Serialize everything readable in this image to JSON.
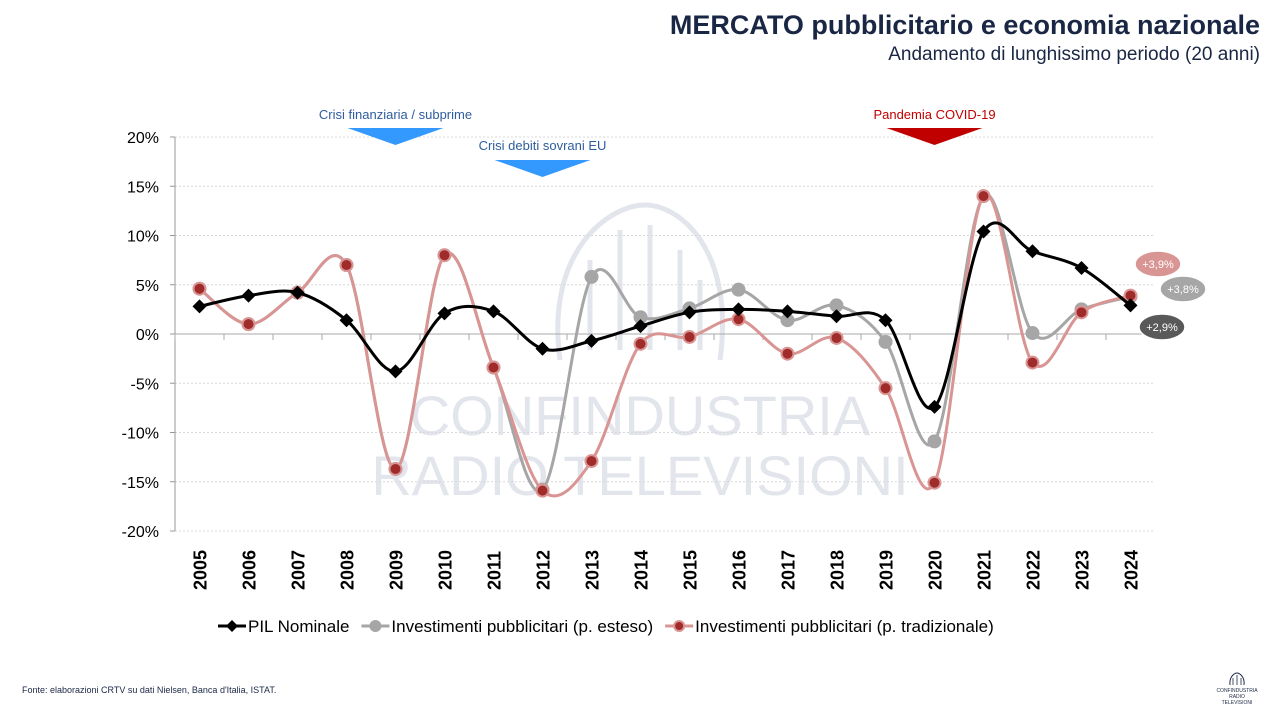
{
  "header": {
    "title": "MERCATO pubblicitario e economia nazionale",
    "subtitle": "Andamento di lunghissimo periodo (20 anni)"
  },
  "footer": {
    "source": "Fonte: elaborazioni CRTV su dati Nielsen, Banca d'Italia, ISTAT.",
    "logo_text": "CONFINDUSTRIA RADIO TELEVISIONI"
  },
  "watermark": {
    "line1": "CONFINDUSTRIA",
    "line2": "RADIO TELEVISIONI"
  },
  "chart_data": {
    "type": "line",
    "title": "",
    "xlabel": "",
    "ylabel": "",
    "ylim": [
      -20,
      20
    ],
    "yticks": [
      20,
      15,
      10,
      5,
      0,
      -5,
      -10,
      -15,
      -20
    ],
    "ytick_labels": [
      "20%",
      "15%",
      "10%",
      "5%",
      "0%",
      "-5%",
      "-10%",
      "-15%",
      "-20%"
    ],
    "grid": true,
    "legend_position": "bottom",
    "categories": [
      "2005",
      "2006",
      "2007",
      "2008",
      "2009",
      "2010",
      "2011",
      "2012",
      "2013",
      "2014",
      "2015",
      "2016",
      "2017",
      "2018",
      "2019",
      "2020",
      "2021",
      "2022",
      "2023",
      "2024"
    ],
    "series": [
      {
        "name": "PIL Nominale",
        "color": "#000000",
        "marker": "diamond",
        "values": [
          2.8,
          3.9,
          4.2,
          1.4,
          -3.8,
          2.1,
          2.3,
          -1.5,
          -0.7,
          0.8,
          2.2,
          2.5,
          2.3,
          1.8,
          1.4,
          -7.4,
          10.4,
          8.4,
          6.7,
          2.9
        ]
      },
      {
        "name": "Investimenti pubblicitari (p. esteso)",
        "color": "#a6a6a6",
        "marker": "circle",
        "values": [
          4.6,
          1.0,
          4.2,
          7.0,
          -13.7,
          8.0,
          -3.4,
          -15.8,
          5.8,
          1.7,
          2.6,
          4.5,
          1.4,
          2.9,
          -0.8,
          -10.9,
          14.0,
          0.1,
          2.5,
          3.8
        ]
      },
      {
        "name": "Investimenti pubblicitari (p. tradizionale)",
        "color": "#d99594",
        "marker_fill": "#a02b2b",
        "marker": "circle",
        "values": [
          4.6,
          1.0,
          4.2,
          7.0,
          -13.7,
          8.0,
          -3.4,
          -15.9,
          -12.9,
          -1.0,
          -0.3,
          1.5,
          -2.0,
          -0.4,
          -5.5,
          -15.1,
          14.0,
          -2.9,
          2.2,
          3.9
        ]
      }
    ],
    "end_labels": [
      {
        "text": "+3,9%",
        "color": "#d99594",
        "series": 2
      },
      {
        "text": "+3,8%",
        "color": "#a6a6a6",
        "series": 1
      },
      {
        "text": "+2,9%",
        "color": "#595959",
        "series": 0
      }
    ],
    "annotations": [
      {
        "text": "Crisi finanziaria / subprime",
        "color": "#2e5d9e",
        "arrow_color": "#3399ff",
        "year": "2009",
        "level": 1
      },
      {
        "text": "Crisi debiti sovrani EU",
        "color": "#2e5d9e",
        "arrow_color": "#3399ff",
        "year": "2012",
        "level": 2
      },
      {
        "text": "Pandemia COVID-19",
        "color": "#c00000",
        "arrow_color": "#c00000",
        "year": "2020",
        "level": 1
      }
    ]
  }
}
